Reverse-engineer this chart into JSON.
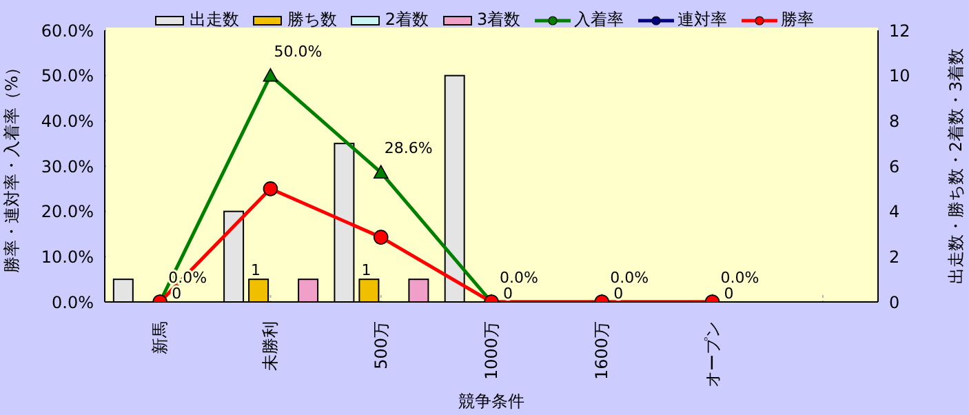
{
  "chart_data": {
    "type": "bar",
    "xlabel": "競争条件",
    "ylabel": "勝率・連対率・入着率（%）",
    "y2label": "出走数・勝ち数・2着数・3着数",
    "categories": [
      "新馬",
      "未勝利",
      "500万",
      "1000万",
      "1600万",
      "オープン",
      null
    ],
    "series": [
      {
        "name": "出走数",
        "axis": "y2",
        "color": "#e4e4e4",
        "values": [
          1,
          4,
          7,
          10,
          0,
          0,
          null
        ]
      },
      {
        "name": "勝ち数",
        "axis": "y2",
        "color": "#f0c000",
        "values": [
          0,
          1,
          1,
          0,
          0,
          0,
          null
        ],
        "value_labels": [
          null,
          "1",
          "1",
          null,
          null,
          null,
          null
        ]
      },
      {
        "name": "2着数",
        "axis": "y2",
        "color": "#c8f4f4",
        "values": [
          0,
          0,
          0,
          0,
          0,
          0,
          null
        ]
      },
      {
        "name": "3着数",
        "axis": "y2",
        "color": "#f0a0c8",
        "values": [
          0,
          1,
          1,
          0,
          0,
          0,
          null
        ]
      },
      {
        "name": "入着率",
        "type": "line",
        "color": "#008000",
        "marker": "triangle",
        "values": [
          0,
          50,
          28.6,
          0,
          0,
          0,
          null
        ],
        "value_labels": [
          "0.0%",
          "50.0%",
          "28.6%",
          "0.0%",
          "0.0%",
          "0.0%",
          null
        ]
      },
      {
        "name": "連対率",
        "type": "line",
        "color": "#000080",
        "marker": "diamond",
        "values": [
          null,
          null,
          null,
          null,
          null,
          null,
          null
        ]
      },
      {
        "name": "勝率",
        "type": "line",
        "color": "#ff0000",
        "marker": "circle",
        "values": [
          0,
          25,
          14.3,
          0,
          0,
          0,
          null
        ],
        "value_labels": [
          "0",
          null,
          null,
          "0",
          "0",
          "0",
          null
        ]
      }
    ],
    "ylim": [
      0,
      60
    ],
    "yticks": [
      {
        "value": 0,
        "label": "0.0%"
      },
      {
        "value": 10,
        "label": "10.0%"
      },
      {
        "value": 20,
        "label": "20.0%"
      },
      {
        "value": 30,
        "label": "30.0%"
      },
      {
        "value": 40,
        "label": "40.0%"
      },
      {
        "value": 50,
        "label": "50.0%"
      },
      {
        "value": 60,
        "label": "60.0%"
      }
    ],
    "y2lim": [
      0,
      12
    ],
    "y2ticks": [
      0,
      2,
      4,
      6,
      8,
      10,
      12
    ],
    "grid": true,
    "legend": "top"
  }
}
